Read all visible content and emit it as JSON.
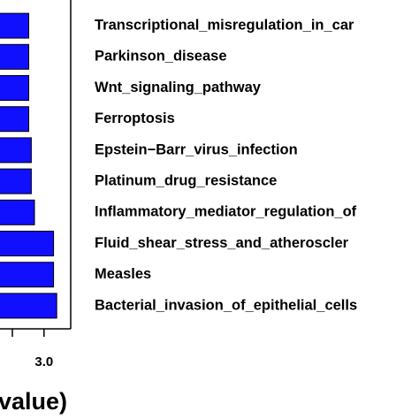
{
  "chart_data": {
    "type": "barh",
    "categories": [
      "Transcriptional_misregulation_in_car",
      "Parkinson_disease",
      "Wnt_signaling_pathway",
      "Ferroptosis",
      "Epstein−Barr_virus_infection",
      "Platinum_drug_resistance",
      "Inflammatory_mediator_regulation_of",
      "Fluid_shear_stress_and_atheroscler",
      "Measles",
      "Bacterial_invasion_of_epithelial_cells"
    ],
    "values": [
      2.76,
      2.76,
      2.76,
      2.76,
      2.8,
      2.8,
      2.85,
      3.15,
      3.15,
      3.2
    ],
    "color": "#1010ff",
    "xlim": [
      0,
      3.42
    ],
    "xticks": [
      {
        "value": 3,
        "label": "3.0"
      }
    ],
    "xlabel": "value)"
  }
}
